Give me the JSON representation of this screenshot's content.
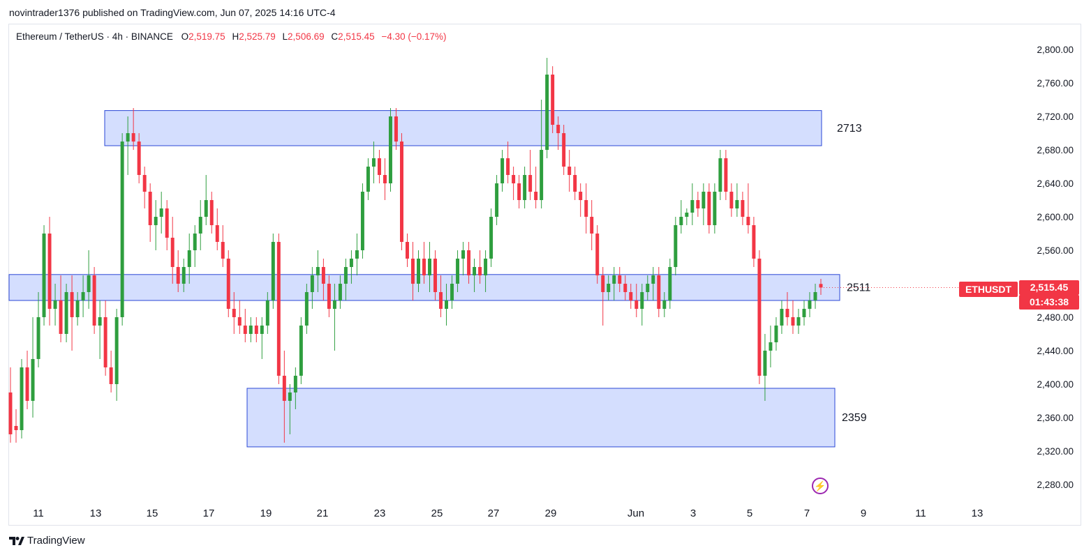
{
  "header": {
    "published": "novintrader1376 published on TradingView.com, Jun 07, 2025 14:16 UTC-4"
  },
  "legend": {
    "symbol": "Ethereum / TetherUS · 4h · BINANCE",
    "o_label": "O",
    "o": "2,519.75",
    "h_label": "H",
    "h": "2,525.79",
    "l_label": "L",
    "l": "2,506.69",
    "c_label": "C",
    "c": "2,515.45",
    "change": "−4.30 (−0.17%)"
  },
  "price_tag": {
    "symbol": "ETHUSDT",
    "price": "2,515.45",
    "countdown": "01:43:38"
  },
  "brand": {
    "name": "TradingView",
    "logo": "tradingview-logo-icon"
  },
  "colors": {
    "up": "#22ab94",
    "up_body": "#2e9e3e",
    "down": "#f23645",
    "zone_fill": "#d4defe",
    "zone_border": "#2a47d6"
  },
  "chart_data": {
    "type": "candlestick",
    "title": "Ethereum / TetherUS · 4h · BINANCE",
    "ylim": [
      2250,
      2830
    ],
    "y_ticks": [
      "2,280.00",
      "2,320.00",
      "2,360.00",
      "2,400.00",
      "2,440.00",
      "2,480.00",
      "2,520.00",
      "2,560.00",
      "2,600.00",
      "2,640.00",
      "2,680.00",
      "2,720.00",
      "2,760.00",
      "2,800.00"
    ],
    "x_ticks": [
      "11",
      "13",
      "15",
      "17",
      "19",
      "21",
      "23",
      "25",
      "27",
      "29",
      "Jun",
      "3",
      "5",
      "7",
      "9",
      "11",
      "13"
    ],
    "last_price": 2515.45,
    "zones": [
      {
        "label": "2713",
        "low": 2685,
        "high": 2727,
        "start": "13",
        "end": "7"
      },
      {
        "label": "2511",
        "low": 2500,
        "high": 2531,
        "start": "10",
        "end": "7"
      },
      {
        "label": "2359",
        "low": 2325,
        "high": 2395,
        "start": "18",
        "end": "7"
      }
    ],
    "candles": [
      [
        2390,
        2420,
        2330,
        2340
      ],
      [
        2350,
        2370,
        2330,
        2345
      ],
      [
        2345,
        2430,
        2335,
        2420
      ],
      [
        2420,
        2440,
        2370,
        2380
      ],
      [
        2380,
        2480,
        2360,
        2430
      ],
      [
        2430,
        2510,
        2420,
        2480
      ],
      [
        2480,
        2590,
        2470,
        2580
      ],
      [
        2580,
        2600,
        2470,
        2490
      ],
      [
        2490,
        2520,
        2470,
        2500
      ],
      [
        2500,
        2530,
        2450,
        2460
      ],
      [
        2460,
        2520,
        2450,
        2510
      ],
      [
        2510,
        2530,
        2440,
        2480
      ],
      [
        2480,
        2510,
        2470,
        2500
      ],
      [
        2500,
        2530,
        2480,
        2510
      ],
      [
        2510,
        2560,
        2490,
        2530
      ],
      [
        2530,
        2540,
        2460,
        2470
      ],
      [
        2470,
        2500,
        2430,
        2480
      ],
      [
        2480,
        2500,
        2410,
        2420
      ],
      [
        2420,
        2440,
        2390,
        2400
      ],
      [
        2400,
        2490,
        2380,
        2480
      ],
      [
        2480,
        2700,
        2470,
        2690
      ],
      [
        2690,
        2720,
        2650,
        2700
      ],
      [
        2700,
        2730,
        2680,
        2690
      ],
      [
        2690,
        2700,
        2640,
        2650
      ],
      [
        2650,
        2660,
        2610,
        2630
      ],
      [
        2630,
        2640,
        2570,
        2590
      ],
      [
        2590,
        2620,
        2560,
        2600
      ],
      [
        2600,
        2630,
        2580,
        2610
      ],
      [
        2610,
        2620,
        2560,
        2575
      ],
      [
        2575,
        2600,
        2520,
        2540
      ],
      [
        2540,
        2560,
        2510,
        2520
      ],
      [
        2520,
        2550,
        2510,
        2540
      ],
      [
        2540,
        2580,
        2520,
        2560
      ],
      [
        2560,
        2590,
        2540,
        2580
      ],
      [
        2580,
        2620,
        2560,
        2600
      ],
      [
        2600,
        2650,
        2590,
        2620
      ],
      [
        2620,
        2630,
        2580,
        2590
      ],
      [
        2590,
        2610,
        2560,
        2570
      ],
      [
        2570,
        2590,
        2540,
        2550
      ],
      [
        2550,
        2560,
        2480,
        2490
      ],
      [
        2490,
        2510,
        2460,
        2480
      ],
      [
        2480,
        2500,
        2460,
        2470
      ],
      [
        2470,
        2490,
        2450,
        2460
      ],
      [
        2460,
        2480,
        2450,
        2470
      ],
      [
        2470,
        2480,
        2450,
        2460
      ],
      [
        2460,
        2480,
        2430,
        2470
      ],
      [
        2470,
        2510,
        2460,
        2500
      ],
      [
        2500,
        2580,
        2490,
        2570
      ],
      [
        2570,
        2580,
        2400,
        2410
      ],
      [
        2410,
        2440,
        2330,
        2380
      ],
      [
        2380,
        2400,
        2340,
        2390
      ],
      [
        2390,
        2420,
        2370,
        2410
      ],
      [
        2410,
        2480,
        2400,
        2470
      ],
      [
        2470,
        2520,
        2460,
        2510
      ],
      [
        2510,
        2540,
        2490,
        2530
      ],
      [
        2530,
        2560,
        2510,
        2540
      ],
      [
        2540,
        2550,
        2500,
        2520
      ],
      [
        2520,
        2530,
        2480,
        2490
      ],
      [
        2490,
        2520,
        2440,
        2500
      ],
      [
        2500,
        2530,
        2490,
        2520
      ],
      [
        2520,
        2550,
        2500,
        2540
      ],
      [
        2540,
        2560,
        2520,
        2550
      ],
      [
        2550,
        2580,
        2530,
        2560
      ],
      [
        2560,
        2640,
        2550,
        2630
      ],
      [
        2630,
        2670,
        2620,
        2660
      ],
      [
        2660,
        2690,
        2640,
        2670
      ],
      [
        2670,
        2680,
        2640,
        2650
      ],
      [
        2650,
        2670,
        2620,
        2640
      ],
      [
        2640,
        2730,
        2630,
        2720
      ],
      [
        2720,
        2730,
        2680,
        2690
      ],
      [
        2690,
        2700,
        2560,
        2570
      ],
      [
        2570,
        2580,
        2540,
        2550
      ],
      [
        2550,
        2570,
        2500,
        2520
      ],
      [
        2520,
        2560,
        2510,
        2550
      ],
      [
        2550,
        2570,
        2520,
        2530
      ],
      [
        2530,
        2570,
        2510,
        2550
      ],
      [
        2550,
        2560,
        2500,
        2510
      ],
      [
        2510,
        2530,
        2480,
        2490
      ],
      [
        2490,
        2520,
        2470,
        2500
      ],
      [
        2500,
        2530,
        2490,
        2520
      ],
      [
        2520,
        2560,
        2510,
        2550
      ],
      [
        2550,
        2570,
        2530,
        2560
      ],
      [
        2560,
        2570,
        2520,
        2530
      ],
      [
        2530,
        2550,
        2510,
        2540
      ],
      [
        2540,
        2560,
        2520,
        2530
      ],
      [
        2530,
        2560,
        2510,
        2550
      ],
      [
        2550,
        2610,
        2540,
        2600
      ],
      [
        2600,
        2650,
        2590,
        2640
      ],
      [
        2640,
        2680,
        2630,
        2670
      ],
      [
        2670,
        2690,
        2640,
        2650
      ],
      [
        2650,
        2660,
        2620,
        2640
      ],
      [
        2640,
        2650,
        2610,
        2620
      ],
      [
        2620,
        2660,
        2610,
        2650
      ],
      [
        2650,
        2680,
        2620,
        2630
      ],
      [
        2630,
        2660,
        2610,
        2620
      ],
      [
        2620,
        2740,
        2610,
        2680
      ],
      [
        2680,
        2790,
        2670,
        2770
      ],
      [
        2770,
        2780,
        2700,
        2710
      ],
      [
        2710,
        2720,
        2680,
        2700
      ],
      [
        2700,
        2710,
        2650,
        2660
      ],
      [
        2660,
        2680,
        2630,
        2650
      ],
      [
        2650,
        2660,
        2620,
        2630
      ],
      [
        2630,
        2640,
        2600,
        2620
      ],
      [
        2620,
        2640,
        2580,
        2600
      ],
      [
        2600,
        2620,
        2560,
        2580
      ],
      [
        2580,
        2590,
        2520,
        2530
      ],
      [
        2530,
        2540,
        2470,
        2510
      ],
      [
        2510,
        2530,
        2500,
        2520
      ],
      [
        2520,
        2540,
        2500,
        2530
      ],
      [
        2530,
        2540,
        2510,
        2520
      ],
      [
        2520,
        2530,
        2500,
        2510
      ],
      [
        2510,
        2520,
        2490,
        2500
      ],
      [
        2500,
        2520,
        2480,
        2490
      ],
      [
        2490,
        2520,
        2470,
        2510
      ],
      [
        2510,
        2530,
        2500,
        2520
      ],
      [
        2520,
        2540,
        2500,
        2530
      ],
      [
        2530,
        2540,
        2480,
        2490
      ],
      [
        2490,
        2510,
        2480,
        2500
      ],
      [
        2500,
        2550,
        2490,
        2540
      ],
      [
        2540,
        2600,
        2530,
        2590
      ],
      [
        2590,
        2620,
        2580,
        2600
      ],
      [
        2600,
        2610,
        2590,
        2605
      ],
      [
        2605,
        2640,
        2590,
        2620
      ],
      [
        2620,
        2630,
        2600,
        2610
      ],
      [
        2610,
        2640,
        2590,
        2630
      ],
      [
        2630,
        2640,
        2580,
        2590
      ],
      [
        2590,
        2640,
        2580,
        2630
      ],
      [
        2630,
        2680,
        2620,
        2670
      ],
      [
        2670,
        2680,
        2620,
        2630
      ],
      [
        2630,
        2640,
        2600,
        2610
      ],
      [
        2610,
        2640,
        2600,
        2620
      ],
      [
        2620,
        2630,
        2590,
        2600
      ],
      [
        2600,
        2640,
        2580,
        2590
      ],
      [
        2590,
        2600,
        2540,
        2550
      ],
      [
        2550,
        2560,
        2400,
        2410
      ],
      [
        2410,
        2460,
        2380,
        2440
      ],
      [
        2440,
        2470,
        2420,
        2450
      ],
      [
        2450,
        2480,
        2440,
        2470
      ],
      [
        2470,
        2500,
        2460,
        2490
      ],
      [
        2490,
        2510,
        2470,
        2480
      ],
      [
        2480,
        2500,
        2460,
        2470
      ],
      [
        2470,
        2490,
        2460,
        2480
      ],
      [
        2480,
        2500,
        2470,
        2490
      ],
      [
        2490,
        2510,
        2480,
        2500
      ],
      [
        2500,
        2520,
        2490,
        2510
      ],
      [
        2519.75,
        2525.79,
        2506.69,
        2515.45
      ]
    ]
  }
}
